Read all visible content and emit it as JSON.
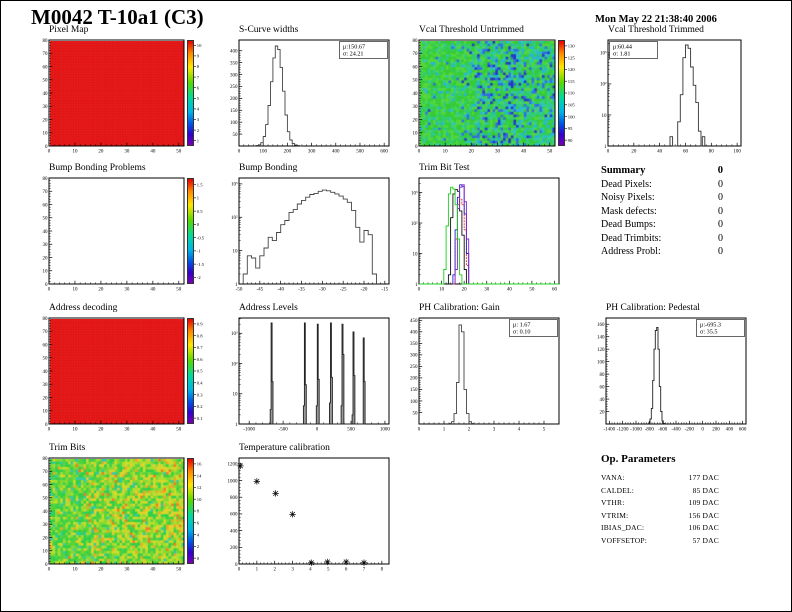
{
  "page": {
    "title": "M0042 T-10a1 (C3)",
    "date": "Mon May 22 21:38:40 2006"
  },
  "summary": {
    "title": "Summary",
    "total": "0",
    "rows": [
      {
        "label": "Dead Pixels:",
        "value": "0"
      },
      {
        "label": "Noisy Pixels:",
        "value": "0"
      },
      {
        "label": "Mask defects:",
        "value": "0"
      },
      {
        "label": "Dead Bumps:",
        "value": "0"
      },
      {
        "label": "Dead Trimbits:",
        "value": "0"
      },
      {
        "label": "Address Probl:",
        "value": "0"
      }
    ]
  },
  "op_parameters": {
    "title": "Op. Parameters",
    "rows": [
      {
        "label": "VANA:",
        "value": "177 DAC"
      },
      {
        "label": "CALDEL:",
        "value": "85 DAC"
      },
      {
        "label": "VTHR:",
        "value": "109 DAC"
      },
      {
        "label": "VTRIM:",
        "value": "156 DAC"
      },
      {
        "label": "IBIAS_DAC:",
        "value": "106 DAC"
      },
      {
        "label": "VOFFSETOP:",
        "value": "57 DAC"
      }
    ]
  },
  "chart_data": [
    {
      "id": "pixel_map",
      "type": "heatmap",
      "title": "Pixel Map",
      "style": "solid",
      "base_color": "#ee1c1c",
      "grid_color": "#b80e0e",
      "xlim": [
        0,
        52
      ],
      "ylim": [
        0,
        80
      ],
      "x_ticks": [
        0,
        10,
        20,
        30,
        40,
        50
      ],
      "y_ticks": [
        0,
        10,
        20,
        30,
        40,
        50,
        60,
        70,
        80
      ],
      "colorbar": {
        "labels": [
          "10",
          "9",
          "8",
          "7",
          "6",
          "5",
          "4",
          "3",
          "2",
          "1"
        ]
      }
    },
    {
      "id": "scurve_widths",
      "type": "histogram",
      "title": "S-Curve widths",
      "stats": [
        "μ:150.67",
        "σ: 24.21"
      ],
      "stats_pos": "right",
      "xlim": [
        0,
        620
      ],
      "x_ticks": [
        0,
        100,
        200,
        300,
        400,
        500,
        600
      ],
      "ylim": [
        0,
        445
      ],
      "y_ticks": [
        50,
        100,
        150,
        200,
        250,
        300,
        350,
        400
      ],
      "bin_width": 10,
      "color": "#444",
      "bins": [
        [
          60,
          1
        ],
        [
          70,
          2
        ],
        [
          80,
          5
        ],
        [
          90,
          14
        ],
        [
          100,
          40
        ],
        [
          110,
          90
        ],
        [
          120,
          170
        ],
        [
          130,
          270
        ],
        [
          140,
          370
        ],
        [
          150,
          420
        ],
        [
          160,
          405
        ],
        [
          170,
          330
        ],
        [
          180,
          230
        ],
        [
          190,
          130
        ],
        [
          200,
          60
        ],
        [
          210,
          25
        ],
        [
          220,
          10
        ],
        [
          230,
          4
        ],
        [
          240,
          2
        ],
        [
          250,
          1
        ]
      ]
    },
    {
      "id": "vcal_threshold_untrimmed",
      "type": "heatmap",
      "title": "Vcal Threshold Untrimmed",
      "style": "noise",
      "cells": [
        52,
        40
      ],
      "seed": 11,
      "colors": [
        "#35cc35",
        "#52d63a",
        "#2ecc6e",
        "#2fc9a8",
        "#27b4d8",
        "#2f6fe0",
        "#2236c8"
      ],
      "weights_left": [
        34,
        30,
        18,
        10,
        4,
        1,
        0
      ],
      "weights_right": [
        20,
        16,
        18,
        16,
        12,
        10,
        5
      ],
      "band": {
        "x0": 0.42,
        "x1": 0.78,
        "extra": [
          0,
          0,
          0,
          3,
          6,
          9,
          7
        ]
      },
      "xlim": [
        0,
        52
      ],
      "ylim": [
        0,
        80
      ],
      "x_ticks": [
        0,
        10,
        20,
        30,
        40,
        50
      ],
      "y_ticks": [
        0,
        10,
        20,
        30,
        40,
        50,
        60,
        70,
        80
      ],
      "colorbar": {
        "labels": [
          "130",
          "125",
          "120",
          "115",
          "110",
          "105",
          "100",
          "95",
          "90"
        ]
      }
    },
    {
      "id": "vcal_threshold_trimmed",
      "type": "histogram",
      "title": "Vcal Threshold Trimmed",
      "stats": [
        "μ:60.44",
        "σ: 1.81"
      ],
      "stats_pos": "left",
      "xlim": [
        0,
        103
      ],
      "x_ticks": [
        0,
        20,
        40,
        60,
        80,
        100
      ],
      "ylog": true,
      "ylim": [
        1,
        2600
      ],
      "y_ticks_log": [
        "1",
        "10",
        "10²",
        "10³"
      ],
      "bin_width": 2,
      "color": "#333",
      "bins": [
        [
          48,
          2
        ],
        [
          54,
          6
        ],
        [
          56,
          45
        ],
        [
          58,
          700
        ],
        [
          60,
          1800
        ],
        [
          62,
          1400
        ],
        [
          64,
          350
        ],
        [
          66,
          90
        ],
        [
          68,
          25
        ],
        [
          70,
          3
        ],
        [
          73,
          2
        ]
      ]
    },
    {
      "id": "bump_bonding_problems",
      "type": "heatmap",
      "title": "Bump Bonding Problems",
      "style": "empty",
      "xlim": [
        0,
        52
      ],
      "ylim": [
        0,
        80
      ],
      "x_ticks": [
        0,
        10,
        20,
        30,
        40,
        50
      ],
      "y_ticks": [
        0,
        10,
        20,
        30,
        40,
        50,
        60,
        70,
        80
      ],
      "colorbar": {
        "labels": [
          "1.5",
          "1",
          "0.5",
          "0",
          "-0.5",
          "-1",
          "-1.5",
          "-2"
        ]
      }
    },
    {
      "id": "bump_bonding",
      "type": "histogram",
      "title": "Bump Bonding",
      "xlim": [
        -50,
        -14
      ],
      "x_ticks": [
        -50,
        -45,
        -40,
        -35,
        -30,
        -25,
        -20,
        -15
      ],
      "ylog": true,
      "ylim": [
        1,
        1500
      ],
      "y_ticks_log": [
        "1",
        "10",
        "10²",
        "10³"
      ],
      "bin_width": 1,
      "color": "#444",
      "bins": [
        [
          -49,
          2
        ],
        [
          -48,
          7
        ],
        [
          -47,
          6
        ],
        [
          -46,
          3
        ],
        [
          -45,
          7
        ],
        [
          -44,
          12
        ],
        [
          -43,
          25
        ],
        [
          -42,
          20
        ],
        [
          -41,
          35
        ],
        [
          -40,
          60
        ],
        [
          -39,
          80
        ],
        [
          -38,
          140
        ],
        [
          -37,
          170
        ],
        [
          -36,
          250
        ],
        [
          -35,
          320
        ],
        [
          -34,
          400
        ],
        [
          -33,
          480
        ],
        [
          -32,
          520
        ],
        [
          -31,
          600
        ],
        [
          -30,
          650
        ],
        [
          -29,
          620
        ],
        [
          -28,
          560
        ],
        [
          -27,
          500
        ],
        [
          -26,
          430
        ],
        [
          -25,
          350
        ],
        [
          -24,
          280
        ],
        [
          -23,
          160
        ],
        [
          -22,
          50
        ],
        [
          -21,
          18
        ],
        [
          -20,
          40
        ],
        [
          -19,
          30
        ],
        [
          -18,
          2
        ]
      ]
    },
    {
      "id": "trim_bit_test",
      "type": "multi-histogram",
      "title": "Trim Bit Test",
      "xlim": [
        0,
        62
      ],
      "x_ticks": [
        0,
        10,
        20,
        30,
        40,
        50,
        60
      ],
      "ylog": true,
      "ylim": [
        1,
        3000
      ],
      "y_ticks_log": [
        "1",
        "10",
        "10²",
        "10³"
      ],
      "bin_width": 1,
      "series": [
        {
          "color": "#111111",
          "bins": [
            [
              13,
              2
            ],
            [
              14,
              150
            ],
            [
              15,
              900
            ],
            [
              16,
              1250
            ],
            [
              17,
              1100
            ],
            [
              18,
              250
            ],
            [
              19,
              40
            ],
            [
              20,
              3
            ]
          ]
        },
        {
          "color": "#e03030",
          "dash": "2,1",
          "bins": [
            [
              15,
              1
            ],
            [
              16,
              30
            ],
            [
              17,
              400
            ],
            [
              18,
              600
            ],
            [
              19,
              400
            ],
            [
              20,
              60
            ],
            [
              21,
              4
            ]
          ]
        },
        {
          "color": "#2222cc",
          "bins": [
            [
              15,
              2
            ],
            [
              16,
              60
            ],
            [
              17,
              700
            ],
            [
              18,
              1800
            ],
            [
              19,
              1600
            ],
            [
              20,
              200
            ],
            [
              21,
              10
            ]
          ]
        },
        {
          "color": "#8422cc",
          "bins": [
            [
              16,
              3
            ],
            [
              17,
              300
            ],
            [
              18,
              1500
            ],
            [
              19,
              1800
            ],
            [
              20,
              500
            ],
            [
              21,
              30
            ]
          ]
        },
        {
          "color": "#1ad11a",
          "bins": [
            [
              0,
              0
            ],
            [
              10,
              1
            ],
            [
              11,
              3
            ],
            [
              12,
              80
            ],
            [
              13,
              900
            ],
            [
              14,
              1500
            ],
            [
              15,
              1300
            ],
            [
              16,
              400
            ],
            [
              17,
              30
            ],
            [
              18,
              2
            ],
            [
              61,
              0
            ]
          ]
        }
      ]
    },
    {
      "id": "address_decoding",
      "type": "heatmap",
      "title": "Address decoding",
      "style": "solid",
      "base_color": "#ee1c1c",
      "grid_color": "#b80e0e",
      "xlim": [
        0,
        52
      ],
      "ylim": [
        0,
        80
      ],
      "x_ticks": [
        0,
        10,
        20,
        30,
        40,
        50
      ],
      "y_ticks": [
        0,
        10,
        20,
        30,
        40,
        50,
        60,
        70,
        80
      ],
      "colorbar": {
        "labels": [
          "0.9",
          "0.8",
          "0.7",
          "0.6",
          "0.5",
          "0.4",
          "0.3",
          "0.2",
          "0.1"
        ]
      }
    },
    {
      "id": "address_levels",
      "type": "histogram",
      "title": "Address Levels",
      "xlim": [
        -1150,
        1060
      ],
      "x_ticks": [
        -1000,
        -500,
        0,
        500,
        1000
      ],
      "ylog": true,
      "ylim": [
        1,
        3200
      ],
      "y_ticks_log": [
        "1",
        "10",
        "10²",
        "10³"
      ],
      "bin_width": 14,
      "color": "#222",
      "fill": "#999",
      "bins": [
        [
          -691,
          3
        ],
        [
          -677,
          2200
        ],
        [
          -663,
          25
        ],
        [
          -201,
          4
        ],
        [
          -187,
          2200
        ],
        [
          -173,
          20
        ],
        [
          -11,
          4
        ],
        [
          3,
          2000
        ],
        [
          17,
          30
        ],
        [
          184,
          5
        ],
        [
          198,
          2200
        ],
        [
          212,
          35
        ],
        [
          354,
          4
        ],
        [
          368,
          2000
        ],
        [
          382,
          200
        ],
        [
          516,
          2
        ],
        [
          530,
          1100
        ],
        [
          544,
          40
        ],
        [
          666,
          1
        ],
        [
          680,
          700
        ],
        [
          694,
          25
        ]
      ]
    },
    {
      "id": "ph_calibration_gain",
      "type": "histogram",
      "title": "PH Calibration: Gain",
      "stats": [
        "μ: 1.67",
        "σ: 0.10"
      ],
      "stats_pos": "right",
      "xlim": [
        0,
        5.6
      ],
      "x_ticks": [
        0,
        1,
        2,
        3,
        4,
        5
      ],
      "ylim": [
        0,
        460
      ],
      "y_ticks": [
        50,
        100,
        150,
        200,
        250,
        300,
        350,
        400,
        450
      ],
      "bin_width": 0.1,
      "color": "#444",
      "bins": [
        [
          1.2,
          2
        ],
        [
          1.3,
          10
        ],
        [
          1.4,
          45
        ],
        [
          1.5,
          180
        ],
        [
          1.6,
          430
        ],
        [
          1.7,
          400
        ],
        [
          1.8,
          150
        ],
        [
          1.9,
          45
        ],
        [
          2.0,
          10
        ],
        [
          2.1,
          2
        ]
      ]
    },
    {
      "id": "ph_calibration_pedestal",
      "type": "histogram",
      "title": "PH Calibration: Pedestal",
      "stats": [
        "μ:-695.3",
        "σ: 35.5"
      ],
      "stats_pos": "right",
      "xlim": [
        -1450,
        650
      ],
      "x_ticks": [
        -1400,
        -1200,
        -1000,
        -800,
        -600,
        -400,
        -200,
        0,
        200,
        400,
        600
      ],
      "ylim": [
        0,
        170
      ],
      "y_ticks": [
        20,
        40,
        60,
        80,
        100,
        120,
        140,
        160
      ],
      "bin_width": 20,
      "color": "#222",
      "bins": [
        [
          -810,
          2
        ],
        [
          -790,
          8
        ],
        [
          -770,
          25
        ],
        [
          -750,
          70
        ],
        [
          -730,
          120
        ],
        [
          -710,
          150
        ],
        [
          -690,
          155
        ],
        [
          -670,
          120
        ],
        [
          -650,
          60
        ],
        [
          -630,
          20
        ],
        [
          -610,
          5
        ],
        [
          -590,
          1
        ]
      ]
    },
    {
      "id": "trim_bits",
      "type": "heatmap",
      "title": "Trim Bits",
      "style": "noise",
      "cells": [
        52,
        40
      ],
      "seed": 23,
      "colors": [
        "#2fcf4a",
        "#55d33a",
        "#84d832",
        "#aedd2e",
        "#ccdd28",
        "#e8cf28",
        "#f0a822",
        "#ef7d1e",
        "#2fc9a8"
      ],
      "weights_left": [
        26,
        24,
        18,
        10,
        5,
        3,
        1,
        0,
        8
      ],
      "weights_right": [
        8,
        12,
        16,
        20,
        20,
        14,
        8,
        4,
        2
      ],
      "xlim": [
        0,
        52
      ],
      "ylim": [
        0,
        80
      ],
      "x_ticks": [
        0,
        10,
        20,
        30,
        40,
        50
      ],
      "y_ticks": [
        0,
        10,
        20,
        30,
        40,
        50,
        60,
        70,
        80
      ],
      "colorbar": {
        "labels": [
          "16",
          "14",
          "12",
          "10",
          "8",
          "6",
          "4",
          "2",
          "0"
        ]
      }
    },
    {
      "id": "temperature_calibration",
      "type": "scatter",
      "title": "Temperature calibration",
      "xlim": [
        0,
        8.4
      ],
      "x_ticks": [
        0,
        1,
        2,
        3,
        4,
        5,
        6,
        7,
        8
      ],
      "ylim": [
        0,
        1270
      ],
      "y_ticks": [
        0,
        200,
        400,
        600,
        800,
        1000,
        1200
      ],
      "marker": "asterisk",
      "color": "#000",
      "points": [
        [
          0.08,
          1175
        ],
        [
          1,
          990
        ],
        [
          2.05,
          845
        ],
        [
          3,
          595
        ],
        [
          4.05,
          15
        ],
        [
          4.95,
          25
        ],
        [
          6,
          25
        ],
        [
          7,
          15
        ]
      ]
    }
  ]
}
